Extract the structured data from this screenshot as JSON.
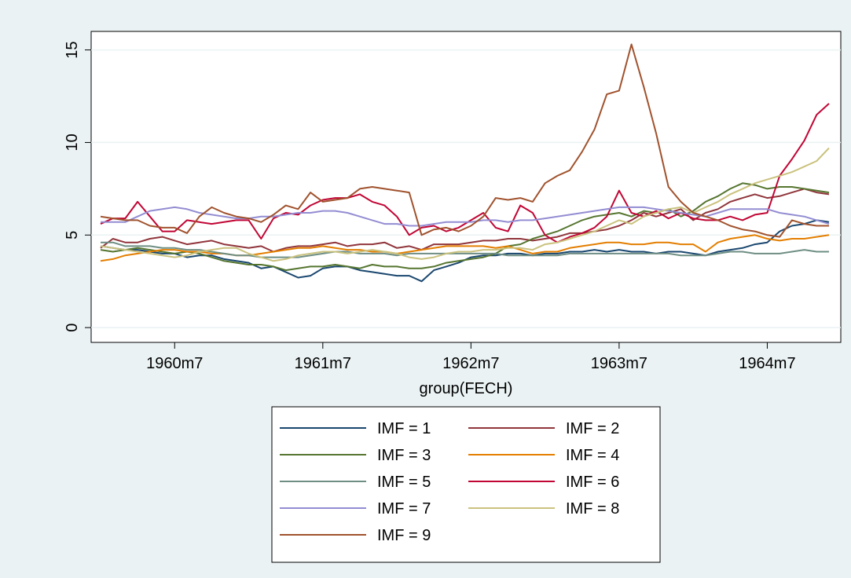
{
  "chart_data": {
    "type": "line",
    "xlabel": "group(FECH)",
    "ylabel": "",
    "x_ticks": [
      "1960m7",
      "1961m7",
      "1962m7",
      "1963m7",
      "1964m7"
    ],
    "y_ticks": [
      0,
      5,
      10,
      15
    ],
    "xlim": [
      "1960m1",
      "1964m12"
    ],
    "ylim": [
      -0.8,
      16
    ],
    "grid": "horizontal",
    "legend_position": "bottom",
    "x": [
      "1960m1",
      "1960m2",
      "1960m3",
      "1960m4",
      "1960m5",
      "1960m6",
      "1960m7",
      "1960m8",
      "1960m9",
      "1960m10",
      "1960m11",
      "1960m12",
      "1961m1",
      "1961m2",
      "1961m3",
      "1961m4",
      "1961m5",
      "1961m6",
      "1961m7",
      "1961m8",
      "1961m9",
      "1961m10",
      "1961m11",
      "1961m12",
      "1962m1",
      "1962m2",
      "1962m3",
      "1962m4",
      "1962m5",
      "1962m6",
      "1962m7",
      "1962m8",
      "1962m9",
      "1962m10",
      "1962m11",
      "1962m12",
      "1963m1",
      "1963m2",
      "1963m3",
      "1963m4",
      "1963m5",
      "1963m6",
      "1963m7",
      "1963m8",
      "1963m9",
      "1963m10",
      "1963m11",
      "1963m12",
      "1964m1",
      "1964m2",
      "1964m3",
      "1964m4",
      "1964m5",
      "1964m6",
      "1964m7",
      "1964m8",
      "1964m9",
      "1964m10",
      "1964m11",
      "1964m12"
    ],
    "series": [
      {
        "name": "IMF = 1",
        "color": "#1a476f",
        "values": [
          4.4,
          4.3,
          4.2,
          4.2,
          4.1,
          4.0,
          4.0,
          3.8,
          3.9,
          3.9,
          3.7,
          3.6,
          3.5,
          3.2,
          3.3,
          3.0,
          2.7,
          2.8,
          3.2,
          3.3,
          3.3,
          3.1,
          3.0,
          2.9,
          2.8,
          2.8,
          2.5,
          3.1,
          3.3,
          3.5,
          3.8,
          3.9,
          3.9,
          4.0,
          4.0,
          3.9,
          4.0,
          4.0,
          4.1,
          4.1,
          4.2,
          4.1,
          4.2,
          4.1,
          4.1,
          4.0,
          4.1,
          4.1,
          4.0,
          3.9,
          4.1,
          4.2,
          4.3,
          4.5,
          4.6,
          5.2,
          5.5,
          5.6,
          5.8,
          5.7
        ]
      },
      {
        "name": "IMF = 2",
        "color": "#90353b",
        "values": [
          4.3,
          4.8,
          4.6,
          4.6,
          4.8,
          4.9,
          4.7,
          4.5,
          4.6,
          4.7,
          4.5,
          4.4,
          4.3,
          4.4,
          4.1,
          4.3,
          4.4,
          4.4,
          4.5,
          4.6,
          4.4,
          4.5,
          4.5,
          4.6,
          4.3,
          4.4,
          4.2,
          4.5,
          4.5,
          4.5,
          4.6,
          4.7,
          4.7,
          4.8,
          4.8,
          4.7,
          4.8,
          4.9,
          5.1,
          5.1,
          5.2,
          5.3,
          5.5,
          5.8,
          6.2,
          6.0,
          6.2,
          6.4,
          5.8,
          6.2,
          6.4,
          6.8,
          7.0,
          7.2,
          7.0,
          7.1,
          7.3,
          7.5,
          7.3,
          7.2
        ]
      },
      {
        "name": "IMF = 3",
        "color": "#55752f",
        "values": [
          4.2,
          4.1,
          4.2,
          4.3,
          4.2,
          4.1,
          4.0,
          4.1,
          4.0,
          3.8,
          3.6,
          3.5,
          3.4,
          3.4,
          3.3,
          3.1,
          3.2,
          3.3,
          3.3,
          3.4,
          3.3,
          3.2,
          3.4,
          3.3,
          3.3,
          3.2,
          3.2,
          3.3,
          3.5,
          3.6,
          3.7,
          3.8,
          4.0,
          4.4,
          4.5,
          4.8,
          5.0,
          5.2,
          5.5,
          5.8,
          6.0,
          6.1,
          6.2,
          6.0,
          6.3,
          6.2,
          6.4,
          6.0,
          6.3,
          6.8,
          7.1,
          7.5,
          7.8,
          7.7,
          7.5,
          7.6,
          7.6,
          7.5,
          7.4,
          7.3
        ]
      },
      {
        "name": "IMF = 4",
        "color": "#e37e00",
        "values": [
          3.6,
          3.7,
          3.9,
          4.0,
          4.1,
          4.2,
          4.2,
          4.1,
          4.1,
          4.0,
          4.0,
          3.9,
          3.9,
          4.0,
          4.1,
          4.2,
          4.3,
          4.3,
          4.4,
          4.3,
          4.2,
          4.2,
          4.1,
          4.1,
          4.0,
          4.1,
          4.2,
          4.3,
          4.4,
          4.4,
          4.4,
          4.4,
          4.3,
          4.4,
          4.2,
          4.0,
          4.1,
          4.1,
          4.3,
          4.4,
          4.5,
          4.6,
          4.6,
          4.5,
          4.5,
          4.6,
          4.6,
          4.5,
          4.5,
          4.1,
          4.6,
          4.8,
          4.9,
          5.0,
          4.8,
          4.7,
          4.8,
          4.8,
          4.9,
          5.0
        ]
      },
      {
        "name": "IMF = 5",
        "color": "#6e8e84",
        "values": [
          4.6,
          4.6,
          4.4,
          4.4,
          4.4,
          4.3,
          4.3,
          4.2,
          4.2,
          4.1,
          4.0,
          3.9,
          3.9,
          3.8,
          3.8,
          3.8,
          3.8,
          3.9,
          4.0,
          4.1,
          4.1,
          4.0,
          4.0,
          4.0,
          3.9,
          4.0,
          4.0,
          4.0,
          4.0,
          4.0,
          4.0,
          4.0,
          4.0,
          3.9,
          3.9,
          3.9,
          3.9,
          3.9,
          4.0,
          4.0,
          4.0,
          4.0,
          4.0,
          4.0,
          4.0,
          4.0,
          4.0,
          3.9,
          3.9,
          3.9,
          4.0,
          4.1,
          4.1,
          4.0,
          4.0,
          4.0,
          4.1,
          4.2,
          4.1,
          4.1
        ]
      },
      {
        "name": "IMF = 6",
        "color": "#c10534",
        "values": [
          5.6,
          5.9,
          5.9,
          6.8,
          6.0,
          5.2,
          5.2,
          5.8,
          5.7,
          5.6,
          5.7,
          5.8,
          5.8,
          4.8,
          5.9,
          6.2,
          6.1,
          6.6,
          6.9,
          7.0,
          7.0,
          7.2,
          6.8,
          6.6,
          6.0,
          5.0,
          5.4,
          5.5,
          5.2,
          5.4,
          5.8,
          6.2,
          5.4,
          5.2,
          6.6,
          6.2,
          5.0,
          4.6,
          4.9,
          5.1,
          5.4,
          6.0,
          7.4,
          6.2,
          6.0,
          6.3,
          5.9,
          6.2,
          5.9,
          5.8,
          5.8,
          6.0,
          5.8,
          6.1,
          6.2,
          8.2,
          9.1,
          10.1,
          11.5,
          12.1
        ]
      },
      {
        "name": "IMF = 7",
        "color": "#938dd2",
        "values": [
          5.7,
          5.7,
          5.7,
          6.0,
          6.3,
          6.4,
          6.5,
          6.4,
          6.2,
          6.1,
          6.0,
          5.9,
          5.9,
          6.0,
          6.0,
          6.1,
          6.2,
          6.2,
          6.3,
          6.3,
          6.2,
          6.0,
          5.8,
          5.6,
          5.6,
          5.5,
          5.5,
          5.6,
          5.7,
          5.7,
          5.7,
          5.8,
          5.8,
          5.7,
          5.8,
          5.8,
          5.9,
          6.0,
          6.1,
          6.2,
          6.3,
          6.4,
          6.5,
          6.5,
          6.5,
          6.4,
          6.3,
          6.2,
          6.1,
          6.0,
          6.2,
          6.4,
          6.4,
          6.4,
          6.4,
          6.2,
          6.1,
          6.0,
          5.8,
          5.6
        ]
      },
      {
        "name": "IMF = 8",
        "color": "#cac27e",
        "values": [
          4.4,
          4.3,
          4.2,
          4.1,
          4.0,
          3.9,
          3.8,
          3.9,
          4.1,
          4.2,
          4.3,
          4.3,
          4.0,
          3.8,
          3.6,
          3.7,
          3.9,
          4.0,
          4.1,
          4.1,
          4.0,
          4.1,
          4.2,
          4.1,
          4.0,
          3.8,
          3.7,
          3.8,
          4.0,
          4.1,
          4.1,
          4.2,
          4.2,
          4.3,
          4.3,
          4.2,
          4.5,
          4.6,
          4.8,
          5.0,
          5.2,
          5.5,
          5.8,
          5.6,
          6.0,
          6.2,
          6.4,
          6.5,
          6.2,
          6.5,
          6.8,
          7.2,
          7.5,
          7.8,
          8.0,
          8.2,
          8.4,
          8.7,
          9.0,
          9.7
        ]
      },
      {
        "name": "IMF = 9",
        "color": "#a0522d",
        "values": [
          6.0,
          5.9,
          5.8,
          5.8,
          5.5,
          5.4,
          5.4,
          5.1,
          6.0,
          6.5,
          6.2,
          6.0,
          5.9,
          5.7,
          6.1,
          6.6,
          6.4,
          7.3,
          6.8,
          6.9,
          7.0,
          7.5,
          7.6,
          7.5,
          7.4,
          7.3,
          5.0,
          5.3,
          5.4,
          5.2,
          5.5,
          6.0,
          7.0,
          6.9,
          7.0,
          6.8,
          7.8,
          8.2,
          8.5,
          9.5,
          10.7,
          12.6,
          12.8,
          15.3,
          13.0,
          10.5,
          7.6,
          6.8,
          6.2,
          6.0,
          5.8,
          5.5,
          5.3,
          5.2,
          5.0,
          4.9,
          5.8,
          5.6,
          5.5,
          5.5
        ]
      }
    ]
  }
}
